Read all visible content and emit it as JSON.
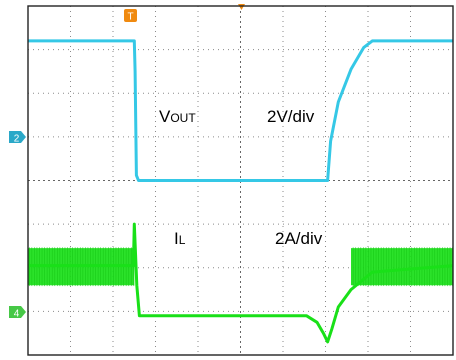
{
  "chart_data": {
    "type": "line",
    "title": "",
    "xlabel": "",
    "ylabel": "",
    "x_divisions": 10,
    "y_divisions": 8,
    "xlim": [
      0,
      10
    ],
    "ylim": [
      -4,
      4
    ],
    "grid": true,
    "colors": {
      "vout": "#35c8e6",
      "il": "#19e018",
      "trigger": "#f08a10",
      "ch2_marker": "#2aa8c8",
      "ch4_marker": "#46c846",
      "border": "#222222",
      "grid": "#8a8a8a"
    },
    "markers": {
      "trigger": "T",
      "channel_2": "2",
      "channel_4": "4"
    },
    "series": [
      {
        "name": "VOUT",
        "label_main": "V",
        "label_sub": "OUT",
        "scale": "2V/div",
        "unit": "div",
        "points": [
          [
            0,
            3.2
          ],
          [
            2.5,
            3.2
          ],
          [
            2.52,
            2.5
          ],
          [
            2.55,
            0.12
          ],
          [
            2.6,
            0
          ],
          [
            7.05,
            0
          ],
          [
            7.12,
            0.9
          ],
          [
            7.3,
            1.8
          ],
          [
            7.6,
            2.55
          ],
          [
            7.9,
            3.05
          ],
          [
            8.1,
            3.2
          ],
          [
            10,
            3.2
          ]
        ]
      },
      {
        "name": "IL",
        "label_main": "I",
        "label_sub": "L",
        "scale": "2A/div",
        "unit": "div",
        "noise_band": [
          [
            0,
            -2.4,
            -1.55
          ],
          [
            2.5,
            -2.4,
            -1.55
          ],
          [
            7.6,
            -2.4,
            -1.55
          ],
          [
            10,
            -2.4,
            -1.55
          ]
        ],
        "points": [
          [
            0,
            -1.95
          ],
          [
            2.48,
            -1.95
          ],
          [
            2.5,
            -1.0
          ],
          [
            2.56,
            -2.4
          ],
          [
            2.62,
            -3.1
          ],
          [
            6.55,
            -3.1
          ],
          [
            6.8,
            -3.25
          ],
          [
            6.95,
            -3.5
          ],
          [
            7.05,
            -3.7
          ],
          [
            7.15,
            -3.4
          ],
          [
            7.3,
            -2.9
          ],
          [
            7.6,
            -2.5
          ],
          [
            8.1,
            -2.1
          ],
          [
            10,
            -1.95
          ]
        ]
      }
    ]
  }
}
